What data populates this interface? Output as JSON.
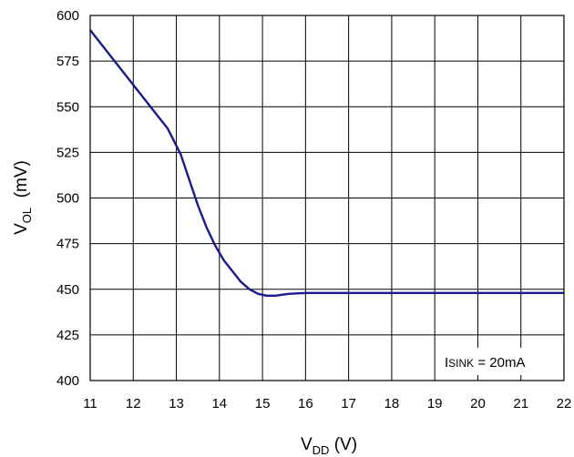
{
  "chart_data": {
    "type": "line",
    "title": "",
    "xlabel": {
      "main": "V",
      "sub": "DD",
      "unit": " (V)"
    },
    "ylabel": {
      "main": "V",
      "sub": "OL",
      "unit": "  (mV)"
    },
    "xlim": [
      11,
      22
    ],
    "ylim": [
      400,
      600
    ],
    "xticks": [
      11,
      12,
      13,
      14,
      15,
      16,
      17,
      18,
      19,
      20,
      21,
      22
    ],
    "yticks": [
      400,
      425,
      450,
      475,
      500,
      525,
      550,
      575,
      600
    ],
    "grid": true,
    "series": [
      {
        "color": "#1a1a8c",
        "x": [
          11.0,
          11.5,
          12.0,
          12.5,
          12.8,
          13.1,
          13.3,
          13.5,
          13.7,
          13.9,
          14.1,
          14.3,
          14.5,
          14.7,
          14.9,
          15.1,
          15.3,
          15.6,
          16.0,
          17.0,
          18.0,
          19.0,
          20.0,
          21.0,
          22.0
        ],
        "y": [
          592,
          577,
          562,
          547,
          538,
          524,
          510,
          496,
          484,
          474,
          466,
          460,
          454,
          450,
          447.5,
          446.5,
          446.5,
          447.5,
          448,
          448,
          448,
          448,
          448,
          448,
          448
        ]
      }
    ],
    "annotation": {
      "main": "I",
      "sub": "SINK",
      "text": " = 20mA"
    }
  }
}
